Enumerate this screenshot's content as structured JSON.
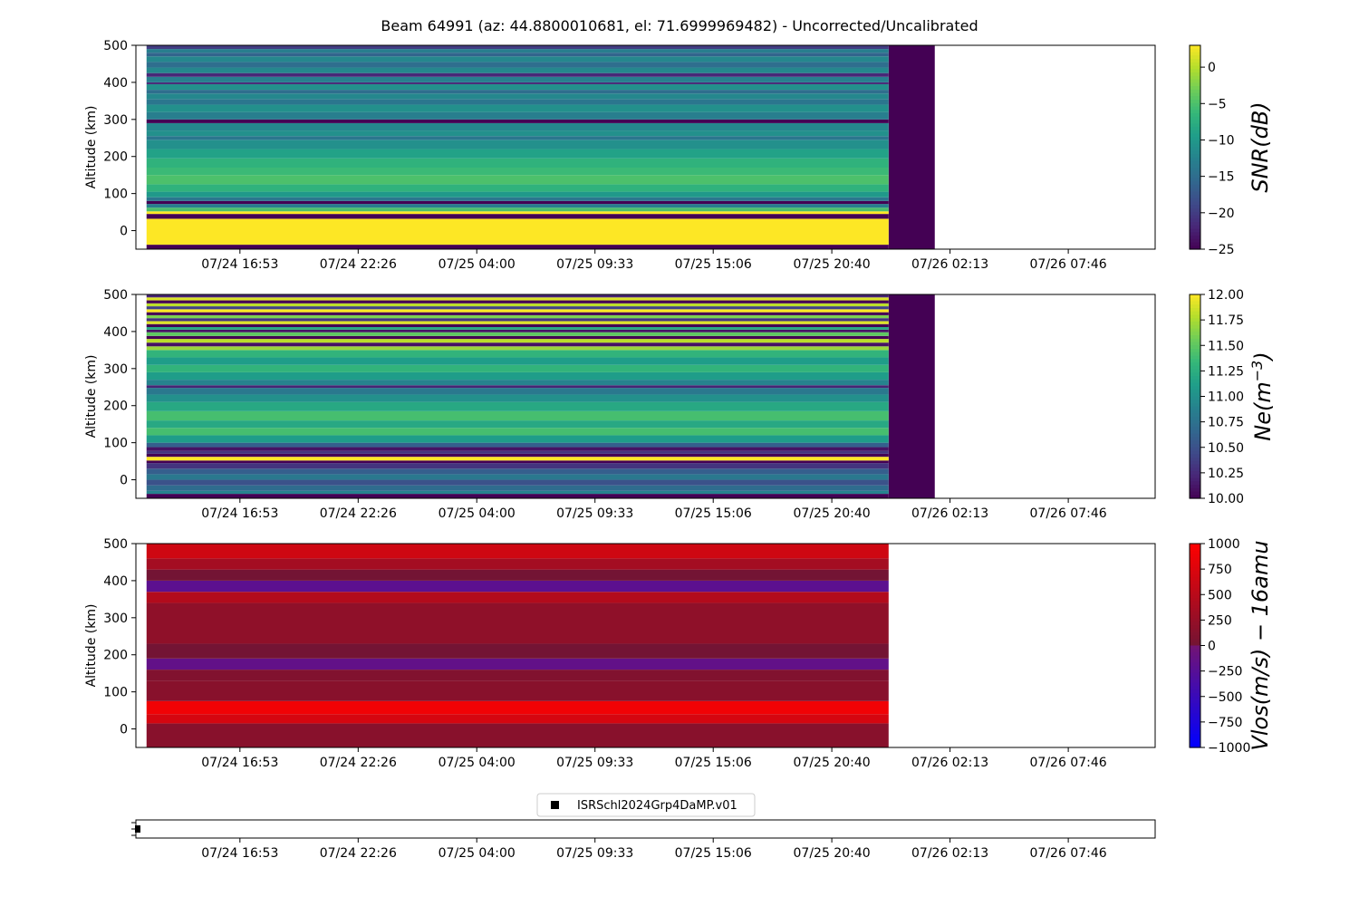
{
  "title": "Beam 64991 (az: 44.8800010681, el: 71.6999969482) - Uncorrected/Uncalibrated",
  "chart_data": [
    {
      "type": "heatmap",
      "name": "snr",
      "ylabel": "Altitude (km)",
      "ylim": [
        -50,
        500
      ],
      "yticks": [
        "0",
        "100",
        "200",
        "300",
        "400",
        "500"
      ],
      "xticks": [
        "07/24 16:53",
        "07/24 22:26",
        "07/25 04:00",
        "07/25 09:33",
        "07/25 15:06",
        "07/25 20:40",
        "07/26 02:13",
        "07/26 07:46"
      ],
      "data_extent": {
        "x_start": "07/24 12:30",
        "x_end": "07/25 23:20",
        "x_missing_end": "07/26 01:30"
      },
      "colormap": "viridis",
      "colorbar": {
        "label": "SNR(dB)",
        "range": [
          -25,
          3
        ],
        "ticks": [
          "0",
          "−5",
          "−10",
          "−15",
          "−20",
          "−25"
        ]
      },
      "rows": [
        {
          "alt_from": -50,
          "alt_to": -38,
          "value": -25
        },
        {
          "alt_from": -38,
          "alt_to": 32,
          "value": 3
        },
        {
          "alt_from": 32,
          "alt_to": 45,
          "value": -25
        },
        {
          "alt_from": 45,
          "alt_to": 52,
          "value": 3
        },
        {
          "alt_from": 52,
          "alt_to": 62,
          "value": -5
        },
        {
          "alt_from": 62,
          "alt_to": 72,
          "value": -13
        },
        {
          "alt_from": 72,
          "alt_to": 80,
          "value": -25
        },
        {
          "alt_from": 80,
          "alt_to": 90,
          "value": -14
        },
        {
          "alt_from": 90,
          "alt_to": 105,
          "value": -10
        },
        {
          "alt_from": 105,
          "alt_to": 125,
          "value": -7
        },
        {
          "alt_from": 125,
          "alt_to": 150,
          "value": -5
        },
        {
          "alt_from": 150,
          "alt_to": 170,
          "value": -6
        },
        {
          "alt_from": 170,
          "alt_to": 195,
          "value": -7
        },
        {
          "alt_from": 195,
          "alt_to": 220,
          "value": -9
        },
        {
          "alt_from": 220,
          "alt_to": 245,
          "value": -11
        },
        {
          "alt_from": 245,
          "alt_to": 255,
          "value": -14
        },
        {
          "alt_from": 255,
          "alt_to": 270,
          "value": -11
        },
        {
          "alt_from": 270,
          "alt_to": 290,
          "value": -12
        },
        {
          "alt_from": 290,
          "alt_to": 300,
          "value": -25
        },
        {
          "alt_from": 300,
          "alt_to": 320,
          "value": -13
        },
        {
          "alt_from": 320,
          "alt_to": 340,
          "value": -11
        },
        {
          "alt_from": 340,
          "alt_to": 355,
          "value": -14
        },
        {
          "alt_from": 355,
          "alt_to": 370,
          "value": -12
        },
        {
          "alt_from": 370,
          "alt_to": 380,
          "value": -15
        },
        {
          "alt_from": 380,
          "alt_to": 395,
          "value": -11
        },
        {
          "alt_from": 395,
          "alt_to": 400,
          "value": -22
        },
        {
          "alt_from": 400,
          "alt_to": 415,
          "value": -13
        },
        {
          "alt_from": 415,
          "alt_to": 425,
          "value": -22
        },
        {
          "alt_from": 425,
          "alt_to": 440,
          "value": -12
        },
        {
          "alt_from": 440,
          "alt_to": 455,
          "value": -15
        },
        {
          "alt_from": 455,
          "alt_to": 470,
          "value": -12
        },
        {
          "alt_from": 470,
          "alt_to": 480,
          "value": -16
        },
        {
          "alt_from": 480,
          "alt_to": 490,
          "value": -13
        },
        {
          "alt_from": 490,
          "alt_to": 500,
          "value": -20
        }
      ]
    },
    {
      "type": "heatmap",
      "name": "ne",
      "ylabel": "Altitude (km)",
      "ylim": [
        -50,
        500
      ],
      "yticks": [
        "0",
        "100",
        "200",
        "300",
        "400",
        "500"
      ],
      "xticks": [
        "07/24 16:53",
        "07/24 22:26",
        "07/25 04:00",
        "07/25 09:33",
        "07/25 15:06",
        "07/25 20:40",
        "07/26 02:13",
        "07/26 07:46"
      ],
      "data_extent": {
        "x_start": "07/24 12:30",
        "x_end": "07/25 23:20",
        "x_missing_end": "07/26 01:30"
      },
      "colormap": "viridis",
      "colorbar": {
        "label": "Ne(m^-3)",
        "range": [
          10,
          12
        ],
        "ticks": [
          "12.00",
          "11.75",
          "11.50",
          "11.25",
          "11.00",
          "10.75",
          "10.50",
          "10.25",
          "10.00"
        ]
      },
      "rows": [
        {
          "alt_from": -50,
          "alt_to": -38,
          "value": 10.0
        },
        {
          "alt_from": -38,
          "alt_to": -30,
          "value": 10.9
        },
        {
          "alt_from": -30,
          "alt_to": -15,
          "value": 10.7
        },
        {
          "alt_from": -15,
          "alt_to": 0,
          "value": 10.5
        },
        {
          "alt_from": 0,
          "alt_to": 15,
          "value": 10.8
        },
        {
          "alt_from": 15,
          "alt_to": 30,
          "value": 10.6
        },
        {
          "alt_from": 30,
          "alt_to": 45,
          "value": 10.3
        },
        {
          "alt_from": 45,
          "alt_to": 52,
          "value": 10.0
        },
        {
          "alt_from": 52,
          "alt_to": 62,
          "value": 12.0
        },
        {
          "alt_from": 62,
          "alt_to": 70,
          "value": 10.0
        },
        {
          "alt_from": 70,
          "alt_to": 78,
          "value": 10.3
        },
        {
          "alt_from": 78,
          "alt_to": 88,
          "value": 10.1
        },
        {
          "alt_from": 88,
          "alt_to": 100,
          "value": 10.6
        },
        {
          "alt_from": 100,
          "alt_to": 120,
          "value": 11.1
        },
        {
          "alt_from": 120,
          "alt_to": 140,
          "value": 11.4
        },
        {
          "alt_from": 140,
          "alt_to": 160,
          "value": 11.2
        },
        {
          "alt_from": 160,
          "alt_to": 185,
          "value": 11.4
        },
        {
          "alt_from": 185,
          "alt_to": 210,
          "value": 11.2
        },
        {
          "alt_from": 210,
          "alt_to": 230,
          "value": 11.0
        },
        {
          "alt_from": 230,
          "alt_to": 248,
          "value": 10.8
        },
        {
          "alt_from": 248,
          "alt_to": 255,
          "value": 10.2
        },
        {
          "alt_from": 255,
          "alt_to": 270,
          "value": 10.9
        },
        {
          "alt_from": 270,
          "alt_to": 290,
          "value": 11.1
        },
        {
          "alt_from": 290,
          "alt_to": 310,
          "value": 11.3
        },
        {
          "alt_from": 310,
          "alt_to": 330,
          "value": 11.1
        },
        {
          "alt_from": 330,
          "alt_to": 350,
          "value": 11.3
        },
        {
          "alt_from": 350,
          "alt_to": 360,
          "value": 11.7
        },
        {
          "alt_from": 360,
          "alt_to": 370,
          "value": 10.1
        },
        {
          "alt_from": 370,
          "alt_to": 380,
          "value": 11.8
        },
        {
          "alt_from": 380,
          "alt_to": 388,
          "value": 10.0
        },
        {
          "alt_from": 388,
          "alt_to": 398,
          "value": 11.5
        },
        {
          "alt_from": 398,
          "alt_to": 405,
          "value": 10.1
        },
        {
          "alt_from": 405,
          "alt_to": 412,
          "value": 11.2
        },
        {
          "alt_from": 412,
          "alt_to": 420,
          "value": 10.0
        },
        {
          "alt_from": 420,
          "alt_to": 428,
          "value": 11.9
        },
        {
          "alt_from": 428,
          "alt_to": 436,
          "value": 10.3
        },
        {
          "alt_from": 436,
          "alt_to": 444,
          "value": 11.6
        },
        {
          "alt_from": 444,
          "alt_to": 452,
          "value": 10.0
        },
        {
          "alt_from": 452,
          "alt_to": 460,
          "value": 12.0
        },
        {
          "alt_from": 460,
          "alt_to": 468,
          "value": 10.4
        },
        {
          "alt_from": 468,
          "alt_to": 476,
          "value": 11.8
        },
        {
          "alt_from": 476,
          "alt_to": 484,
          "value": 10.0
        },
        {
          "alt_from": 484,
          "alt_to": 492,
          "value": 11.9
        },
        {
          "alt_from": 492,
          "alt_to": 500,
          "value": 10.2
        }
      ]
    },
    {
      "type": "heatmap",
      "name": "vlos",
      "ylabel": "Altitude (km)",
      "ylim": [
        -50,
        500
      ],
      "yticks": [
        "0",
        "100",
        "200",
        "300",
        "400",
        "500"
      ],
      "xticks": [
        "07/24 16:53",
        "07/24 22:26",
        "07/25 04:00",
        "07/25 09:33",
        "07/25 15:06",
        "07/25 20:40",
        "07/26 02:13",
        "07/26 07:46"
      ],
      "data_extent": {
        "x_start": "07/24 12:30",
        "x_end": "07/25 23:20"
      },
      "colormap": "bwr",
      "colorbar": {
        "label": "Vlos(m/s) − 16amu",
        "range": [
          -1000,
          1000
        ],
        "ticks": [
          "1000",
          "750",
          "500",
          "250",
          "0",
          "−250",
          "−500",
          "−750",
          "−1000"
        ]
      },
      "rows": [
        {
          "alt_from": -50,
          "alt_to": 15,
          "value": 150
        },
        {
          "alt_from": 15,
          "alt_to": 40,
          "value": 700
        },
        {
          "alt_from": 40,
          "alt_to": 75,
          "value": 900
        },
        {
          "alt_from": 75,
          "alt_to": 130,
          "value": 150
        },
        {
          "alt_from": 130,
          "alt_to": 160,
          "value": 100
        },
        {
          "alt_from": 160,
          "alt_to": 190,
          "value": -150
        },
        {
          "alt_from": 190,
          "alt_to": 230,
          "value": 0
        },
        {
          "alt_from": 230,
          "alt_to": 340,
          "value": 200
        },
        {
          "alt_from": 340,
          "alt_to": 370,
          "value": 450
        },
        {
          "alt_from": 370,
          "alt_to": 400,
          "value": -200
        },
        {
          "alt_from": 400,
          "alt_to": 430,
          "value": 0
        },
        {
          "alt_from": 430,
          "alt_to": 460,
          "value": 350
        },
        {
          "alt_from": 460,
          "alt_to": 500,
          "value": 650
        }
      ]
    },
    {
      "type": "scatter",
      "name": "experiment-timeline",
      "xticks": [
        "07/24 16:53",
        "07/24 22:26",
        "07/25 04:00",
        "07/25 09:33",
        "07/25 15:06",
        "07/25 20:40",
        "07/26 02:13",
        "07/26 07:46"
      ],
      "legend": {
        "label": "ISRSchl2024Grp4DaMP.v01",
        "placement": "top-center"
      }
    }
  ]
}
